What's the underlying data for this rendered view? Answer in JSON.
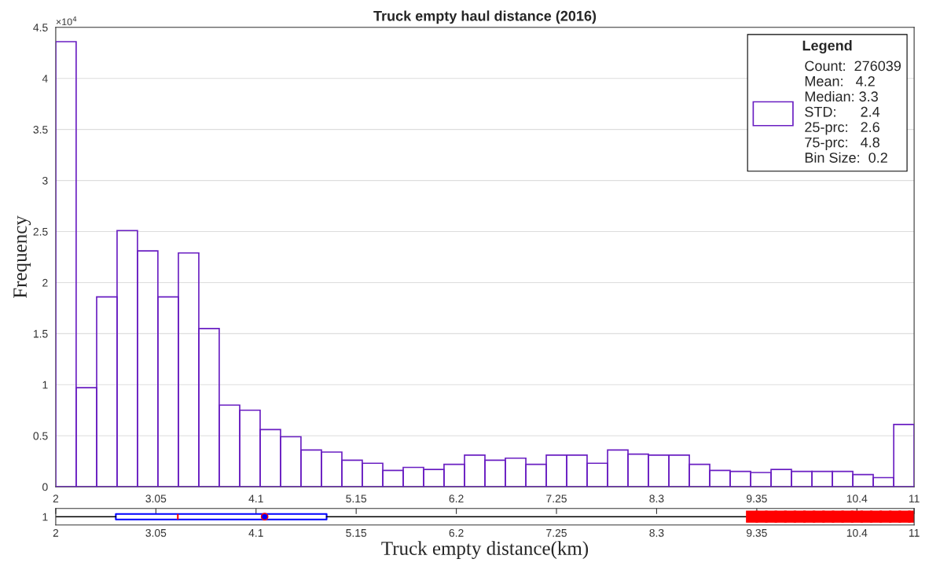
{
  "chart_data": [
    {
      "type": "histogram",
      "title": "Truck empty haul distance (2016)",
      "ylabel": "Frequency",
      "bins": [
        2,
        2.214,
        2.429,
        2.643,
        2.857,
        3.071,
        3.286,
        3.5,
        3.714,
        3.929,
        4.143,
        4.357,
        4.571,
        4.786,
        5,
        5.214,
        5.429,
        5.643,
        5.857,
        6.071,
        6.286,
        6.5,
        6.714,
        6.929,
        7.143,
        7.357,
        7.571,
        7.786,
        8,
        8.214,
        8.429,
        8.643,
        8.857,
        9.071,
        9.286,
        9.5,
        9.714,
        9.929,
        10.143,
        10.357,
        10.571,
        10.786,
        11
      ],
      "series": [
        {
          "name": "Count:  276039\nMean:   4.2\nMedian: 3.3\nSTD:      2.4\n25-prc:   2.6\n75-prc:   4.8\nBin Size:  0.2",
          "color": "#6a1fc2",
          "values": [
            4.36,
            0.97,
            1.86,
            2.51,
            2.31,
            1.86,
            2.29,
            1.55,
            0.8,
            0.75,
            0.56,
            0.49,
            0.36,
            0.34,
            0.26,
            0.23,
            0.16,
            0.19,
            0.17,
            0.22,
            0.31,
            0.26,
            0.28,
            0.22,
            0.31,
            0.31,
            0.23,
            0.36,
            0.32,
            0.31,
            0.31,
            0.22,
            0.16,
            0.15,
            0.14,
            0.17,
            0.15,
            0.15,
            0.15,
            0.12,
            0.09,
            0.61
          ]
        }
      ],
      "legend": "top right",
      "legend_title": "Legend",
      "xlim": [
        2,
        11
      ],
      "xticks": [
        2,
        3.05,
        4.1,
        5.15,
        6.2,
        7.25,
        8.3,
        9.35,
        10.4,
        11
      ],
      "ylim": [
        0,
        4.5
      ],
      "yticks": [
        0,
        0.5,
        1,
        1.5,
        2,
        2.5,
        3,
        3.5,
        4,
        4.5
      ],
      "annotations": [
        "×10$^{4}$"
      ],
      "grid": "y"
    },
    {
      "type": "box",
      "orientation": "horizontal",
      "xlabel": "Truck empty distance(km)",
      "categories": [
        "1"
      ],
      "color": "#0000ff",
      "boxes": [
        {
          "low": 2,
          "q1": 2.63,
          "median": 3.28,
          "q3": 4.84,
          "high": 9.3,
          "mean": 4.19,
          "outliers": [
            9.3,
            9.4,
            9.5,
            9.6,
            9.7,
            9.8,
            9.9,
            10,
            10.1,
            10.2,
            10.3,
            10.4,
            10.5,
            10.6,
            10.7,
            10.8,
            10.9,
            11
          ]
        }
      ],
      "xlim": [
        2,
        11
      ],
      "xticks": [
        2,
        3.05,
        4.1,
        5.15,
        6.2,
        7.25,
        8.3,
        9.35,
        10.4,
        11
      ]
    }
  ]
}
